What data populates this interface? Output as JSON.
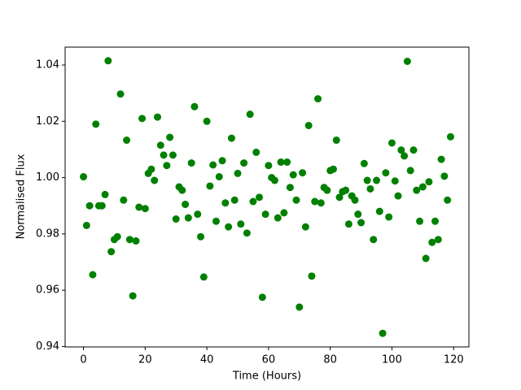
{
  "chart_data": {
    "type": "scatter",
    "x_label": "Time (Hours)",
    "y_label": "Normalised Flux",
    "xlim": [
      -5.95,
      124.95
    ],
    "ylim": [
      0.93985,
      1.04635
    ],
    "xticks": [
      0,
      20,
      40,
      60,
      80,
      100,
      120
    ],
    "yticks": [
      0.94,
      0.96,
      0.98,
      {
        "value": 1,
        "label": "1.00"
      },
      1.02,
      1.04
    ],
    "series": [
      {
        "color": "#008000",
        "x": [
          0,
          1,
          2,
          3,
          4,
          5,
          6,
          7,
          8,
          9,
          10,
          11,
          12,
          13,
          14,
          15,
          16,
          17,
          18,
          19,
          20,
          21,
          22,
          23,
          24,
          25,
          26,
          27,
          28,
          29,
          30,
          31,
          32,
          33,
          34,
          35,
          36,
          37,
          38,
          39,
          40,
          41,
          42,
          43,
          44,
          45,
          46,
          47,
          48,
          49,
          50,
          51,
          52,
          53,
          54,
          55,
          56,
          57,
          58,
          59,
          60,
          61,
          62,
          63,
          64,
          65,
          66,
          67,
          68,
          69,
          70,
          71,
          72,
          73,
          74,
          75,
          76,
          77,
          78,
          79,
          80,
          81,
          82,
          83,
          84,
          85,
          86,
          87,
          88,
          89,
          90,
          91,
          92,
          93,
          94,
          95,
          96,
          97,
          98,
          99,
          100,
          101,
          102,
          103,
          104,
          105,
          106,
          107,
          108,
          109,
          110,
          111,
          112,
          113,
          114,
          115,
          116,
          117,
          118,
          119
        ],
        "values": [
          1.0003,
          0.983,
          0.99,
          0.9655,
          1.019,
          0.99,
          0.99,
          0.994,
          1.0415,
          0.9737,
          0.978,
          0.979,
          1.0297,
          0.992,
          1.0133,
          0.978,
          0.958,
          0.9775,
          0.9895,
          1.021,
          0.989,
          1.0015,
          1.003,
          0.999,
          1.0215,
          1.0115,
          1.008,
          1.0043,
          1.0143,
          1.008,
          0.9853,
          0.9967,
          0.9955,
          0.9905,
          0.9857,
          1.0052,
          1.0252,
          0.987,
          0.979,
          0.9647,
          1.02,
          0.997,
          1.0045,
          0.9845,
          1.0003,
          1.006,
          0.991,
          0.9825,
          1.014,
          0.992,
          1.0015,
          0.9835,
          1.0052,
          0.9803,
          1.0225,
          0.9915,
          1.009,
          0.993,
          0.9575,
          0.987,
          1.0043,
          1.0,
          0.999,
          0.9857,
          1.0055,
          0.9875,
          1.0055,
          0.9965,
          1.001,
          0.992,
          0.954,
          1.0017,
          0.9825,
          1.0185,
          0.965,
          0.9915,
          1.028,
          0.991,
          0.9965,
          0.9955,
          1.0025,
          1.003,
          1.0133,
          0.993,
          0.995,
          0.9955,
          0.9835,
          0.9935,
          0.992,
          0.987,
          0.984,
          1.005,
          0.999,
          0.996,
          0.978,
          0.999,
          0.988,
          0.9447,
          1.0017,
          0.986,
          1.0123,
          0.9988,
          0.9935,
          1.0098,
          1.0077,
          1.0413,
          1.0025,
          1.0098,
          0.9955,
          0.9845,
          0.9967,
          0.9713,
          0.9985,
          0.977,
          0.9845,
          0.978,
          1.0065,
          1.0005,
          0.992,
          1.0145
        ]
      }
    ]
  }
}
